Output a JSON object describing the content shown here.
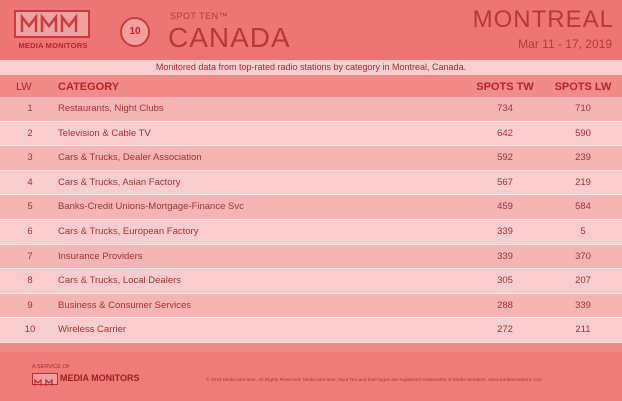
{
  "header": {
    "brand_text": "MEDIA MONITORS",
    "badge_number": "10",
    "spot_ten_label": "SPOT TEN™",
    "country": "CANADA",
    "city": "MONTREAL",
    "date_range": "Mar 11 - 17, 2019",
    "subtitle": "Monitored data from top-rated radio stations by category in Montreal, Canada."
  },
  "table": {
    "columns": [
      "LW",
      "CATEGORY",
      "SPOTS TW",
      "SPOTS LW"
    ],
    "rows": [
      {
        "rank": "1",
        "category": "Restaurants, Night Clubs",
        "spots_tw": "734",
        "spots_lw": "710"
      },
      {
        "rank": "2",
        "category": "Television & Cable TV",
        "spots_tw": "642",
        "spots_lw": "590"
      },
      {
        "rank": "3",
        "category": "Cars & Trucks, Dealer Association",
        "spots_tw": "592",
        "spots_lw": "239"
      },
      {
        "rank": "4",
        "category": "Cars & Trucks, Asian Factory",
        "spots_tw": "567",
        "spots_lw": "219"
      },
      {
        "rank": "5",
        "category": "Banks-Credit Unions-Mortgage-Finance Svc",
        "spots_tw": "459",
        "spots_lw": "584"
      },
      {
        "rank": "6",
        "category": "Cars & Trucks, European Factory",
        "spots_tw": "339",
        "spots_lw": "5"
      },
      {
        "rank": "7",
        "category": "Insurance Providers",
        "spots_tw": "339",
        "spots_lw": "370"
      },
      {
        "rank": "8",
        "category": "Cars & Trucks, Local Dealers",
        "spots_tw": "305",
        "spots_lw": "207"
      },
      {
        "rank": "9",
        "category": "Business & Consumer Services",
        "spots_tw": "288",
        "spots_lw": "339"
      },
      {
        "rank": "10",
        "category": "Wireless Carrier",
        "spots_tw": "272",
        "spots_lw": "211"
      }
    ]
  },
  "footer": {
    "service_label": "A SERVICE OF",
    "brand_name": "MEDIA MONITORS",
    "copyright": "© 2019 Media Monitors. All Rights Reserved. Media Monitors, Spot Ten and their logos are registered trademarks of Media Monitors. www.mediamonitors.com"
  },
  "colors": {
    "background": "#f28b8b",
    "accent": "#b52626",
    "row_odd": "#f5b5b5",
    "row_even": "#f8cdcd"
  }
}
